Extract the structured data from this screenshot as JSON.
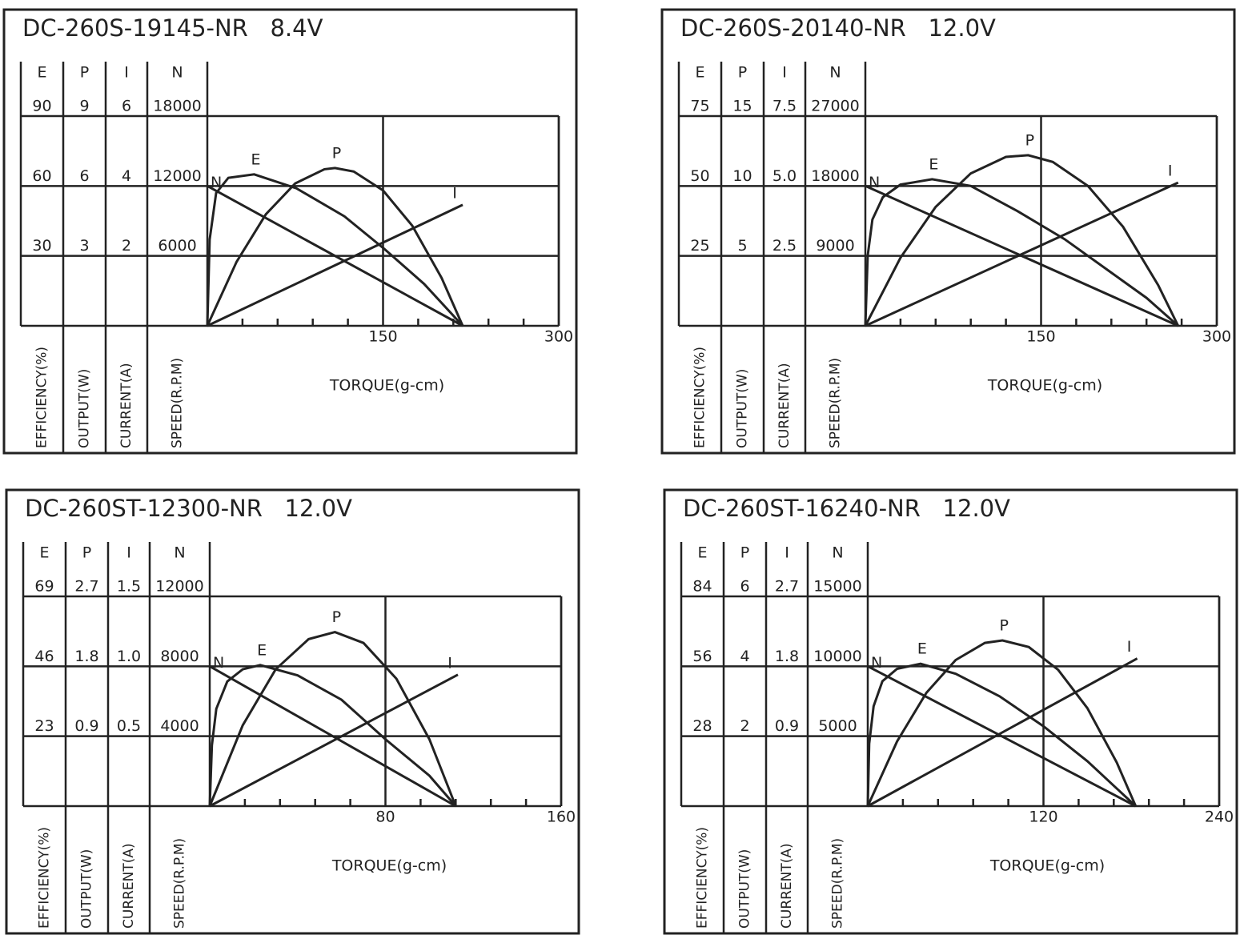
{
  "chart_data": [
    {
      "type": "line",
      "title": "DC-260S-19145-NR   8.4V",
      "xlabel": "TORQUE(g-cm)",
      "xlim": [
        0,
        300
      ],
      "xticks": [
        150,
        300
      ],
      "xminorticks": [
        30,
        60,
        90,
        120,
        180,
        210,
        240,
        270
      ],
      "axes": [
        {
          "name": "E",
          "label": "EFFICIENCY(%)",
          "ylim": [
            0,
            90
          ],
          "yticks": [
            30,
            60,
            90
          ]
        },
        {
          "name": "P",
          "label": "OUTPUT(W)",
          "ylim": [
            0,
            9
          ],
          "yticks": [
            3,
            6,
            9
          ]
        },
        {
          "name": "I",
          "label": "CURRENT(A)",
          "ylim": [
            0,
            6
          ],
          "yticks": [
            2,
            4,
            6
          ]
        },
        {
          "name": "N",
          "label": "SPEED(R.P.M)",
          "ylim": [
            0,
            18000
          ],
          "yticks": [
            6000,
            12000,
            18000
          ]
        }
      ],
      "series": [
        {
          "name": "N",
          "axis": "N",
          "color": "#222222",
          "x": [
            0,
            218
          ],
          "values": [
            12000,
            0
          ]
        },
        {
          "name": "E",
          "axis": "E",
          "color": "#222222",
          "x": [
            0,
            2,
            7.5,
            18,
            40,
            76,
            117,
            151,
            185,
            218
          ],
          "values": [
            0,
            37,
            57,
            63.5,
            65,
            59,
            47,
            33,
            18,
            0
          ]
        },
        {
          "name": "P",
          "axis": "P",
          "color": "#222222",
          "x": [
            0,
            25,
            50,
            75,
            100,
            109,
            125,
            150,
            175,
            200,
            218
          ],
          "values": [
            0,
            2.75,
            4.79,
            6.11,
            6.72,
            6.77,
            6.62,
            5.81,
            4.29,
            2.05,
            0
          ]
        },
        {
          "name": "I",
          "axis": "I",
          "color": "#222222",
          "x": [
            0,
            218
          ],
          "values": [
            0,
            3.46
          ]
        }
      ]
    },
    {
      "type": "line",
      "title": "DC-260S-20140-NR   12.0V",
      "xlabel": "TORQUE(g-cm)",
      "xlim": [
        0,
        300
      ],
      "xticks": [
        150,
        300
      ],
      "xminorticks": [
        30,
        60,
        90,
        120,
        180,
        210,
        240,
        270
      ],
      "axes": [
        {
          "name": "E",
          "label": "EFFICIENCY(%)",
          "ylim": [
            0,
            75
          ],
          "yticks": [
            25,
            50,
            75
          ]
        },
        {
          "name": "P",
          "label": "OUTPUT(W)",
          "ylim": [
            0,
            15
          ],
          "yticks": [
            5,
            10,
            15
          ]
        },
        {
          "name": "I",
          "label": "CURRENT(A)",
          "ylim": [
            0,
            7.5
          ],
          "yticks": [
            2.5,
            {
              "value": 5,
              "label": "5.0"
            },
            7.5
          ]
        },
        {
          "name": "N",
          "label": "SPEED(R.P.M)",
          "ylim": [
            0,
            27000
          ],
          "yticks": [
            9000,
            18000,
            27000
          ]
        }
      ],
      "series": [
        {
          "name": "N",
          "axis": "N",
          "color": "#222222",
          "x": [
            0,
            267
          ],
          "values": [
            18000,
            0
          ]
        },
        {
          "name": "E",
          "axis": "E",
          "color": "#222222",
          "x": [
            0,
            2,
            6,
            15,
            30,
            57,
            90,
            130,
            170,
            210,
            240,
            267
          ],
          "values": [
            0,
            25,
            38,
            46,
            50.5,
            52.4,
            50,
            41,
            31,
            19,
            10,
            0
          ]
        },
        {
          "name": "P",
          "axis": "P",
          "color": "#222222",
          "x": [
            0,
            30,
            60,
            90,
            120,
            139,
            160,
            190,
            220,
            250,
            267
          ],
          "values": [
            0,
            4.87,
            8.5,
            10.9,
            12.08,
            12.2,
            11.72,
            10,
            7.08,
            2.91,
            0
          ]
        },
        {
          "name": "I",
          "axis": "I",
          "color": "#222222",
          "x": [
            0,
            267
          ],
          "values": [
            0,
            5.12
          ]
        }
      ]
    },
    {
      "type": "line",
      "title": "DC-260ST-12300-NR   12.0V",
      "xlabel": "TORQUE(g-cm)",
      "xlim": [
        0,
        160
      ],
      "xticks": [
        80,
        160
      ],
      "xminorticks": [
        16,
        32,
        48,
        64,
        96,
        112,
        128,
        144
      ],
      "axes": [
        {
          "name": "E",
          "label": "EFFICIENCY(%)",
          "ylim": [
            0,
            69
          ],
          "yticks": [
            23,
            46,
            69
          ]
        },
        {
          "name": "P",
          "label": "OUTPUT(W)",
          "ylim": [
            0,
            2.7
          ],
          "yticks": [
            0.9,
            1.8,
            2.7
          ]
        },
        {
          "name": "I",
          "label": "CURRENT(A)",
          "ylim": [
            0,
            1.5
          ],
          "yticks": [
            0.5,
            {
              "value": 1,
              "label": "1.0"
            },
            1.5
          ]
        },
        {
          "name": "N",
          "label": "SPEED(R.P.M)",
          "ylim": [
            0,
            12000
          ],
          "yticks": [
            4000,
            8000,
            12000
          ]
        }
      ],
      "series": [
        {
          "name": "N",
          "axis": "N",
          "color": "#222222",
          "x": [
            0,
            112
          ],
          "values": [
            8000,
            0
          ]
        },
        {
          "name": "E",
          "axis": "E",
          "color": "#222222",
          "x": [
            0,
            1,
            3,
            8,
            15,
            23,
            40,
            60,
            80,
            100,
            112
          ],
          "values": [
            0,
            20,
            32,
            41,
            45,
            46.4,
            43,
            35,
            22,
            10,
            0
          ]
        },
        {
          "name": "P",
          "axis": "P",
          "color": "#222222",
          "x": [
            0,
            15,
            30,
            45,
            57,
            70,
            85,
            100,
            112
          ],
          "values": [
            0,
            1.04,
            1.76,
            2.15,
            2.24,
            2.1,
            1.64,
            0.86,
            0
          ]
        },
        {
          "name": "I",
          "axis": "I",
          "color": "#222222",
          "x": [
            0,
            113
          ],
          "values": [
            0,
            0.94
          ]
        }
      ]
    },
    {
      "type": "line",
      "title": "DC-260ST-16240-NR   12.0V",
      "xlabel": "TORQUE(g-cm)",
      "xlim": [
        0,
        240
      ],
      "xticks": [
        120,
        240
      ],
      "xminorticks": [
        24,
        48,
        72,
        96,
        144,
        168,
        192,
        216
      ],
      "axes": [
        {
          "name": "E",
          "label": "EFFICIENCY(%)",
          "ylim": [
            0,
            84
          ],
          "yticks": [
            28,
            56,
            84
          ]
        },
        {
          "name": "P",
          "label": "OUTPUT(W)",
          "ylim": [
            0,
            6
          ],
          "yticks": [
            2,
            4,
            6
          ]
        },
        {
          "name": "I",
          "label": "CURRENT(A)",
          "ylim": [
            0,
            2.7
          ],
          "yticks": [
            0.9,
            1.8,
            2.7
          ]
        },
        {
          "name": "N",
          "label": "SPEED(R.P.M)",
          "ylim": [
            0,
            15000
          ],
          "yticks": [
            5000,
            10000,
            15000
          ]
        }
      ],
      "series": [
        {
          "name": "N",
          "axis": "N",
          "color": "#222222",
          "x": [
            0,
            183
          ],
          "values": [
            10000,
            0
          ]
        },
        {
          "name": "E",
          "axis": "E",
          "color": "#222222",
          "x": [
            0,
            1,
            4,
            10,
            20,
            36,
            60,
            90,
            120,
            150,
            183
          ],
          "values": [
            0,
            25,
            40,
            50,
            55,
            57,
            53,
            44,
            32,
            18,
            0
          ]
        },
        {
          "name": "P",
          "axis": "P",
          "color": "#222222",
          "x": [
            0,
            20,
            40,
            60,
            80,
            92,
            110,
            130,
            150,
            170,
            183
          ],
          "values": [
            0,
            1.85,
            3.24,
            4.18,
            4.67,
            4.74,
            4.55,
            3.9,
            2.8,
            1.25,
            0
          ]
        },
        {
          "name": "I",
          "axis": "I",
          "color": "#222222",
          "x": [
            0,
            184
          ],
          "values": [
            0,
            1.9
          ]
        }
      ]
    }
  ]
}
